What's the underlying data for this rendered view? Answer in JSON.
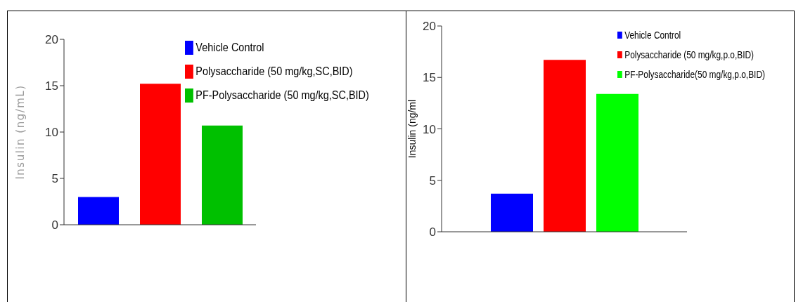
{
  "chart_data": [
    {
      "type": "bar",
      "ylabel": "Insulin (ng/mL)",
      "categories": [
        null
      ],
      "series": [
        {
          "name": "Vehicle Control",
          "color": "#0000ff",
          "values": [
            3.0
          ]
        },
        {
          "name": "Polysaccharide (50 mg/kg,SC,BID)",
          "color": "#ff0000",
          "values": [
            15.2
          ]
        },
        {
          "name": "PF-Polysaccharide (50 mg/kg,SC,BID)",
          "color": "#00c000",
          "values": [
            10.7
          ]
        }
      ],
      "ylim": [
        0,
        20
      ],
      "yticks": [
        0,
        5,
        10,
        15,
        20
      ],
      "legend": "top right",
      "tick_labels": "y"
    },
    {
      "type": "bar",
      "ylabel": "Insulin (ng/ml",
      "categories": [
        null
      ],
      "series": [
        {
          "name": "Vehicle Control",
          "color": "#0000ff",
          "values": [
            3.7
          ]
        },
        {
          "name": "Polysaccharide (50 mg/kg,p.o,BID)",
          "color": "#ff0000",
          "values": [
            16.7
          ]
        },
        {
          "name": "PF-Polysaccharide(50 mg/kg,p.o,BID)",
          "color": "#00ff00",
          "values": [
            13.4
          ]
        }
      ],
      "ylim": [
        0,
        20
      ],
      "yticks": [
        0,
        5,
        10,
        15,
        20
      ],
      "legend": "top right",
      "tick_labels": "y"
    }
  ]
}
